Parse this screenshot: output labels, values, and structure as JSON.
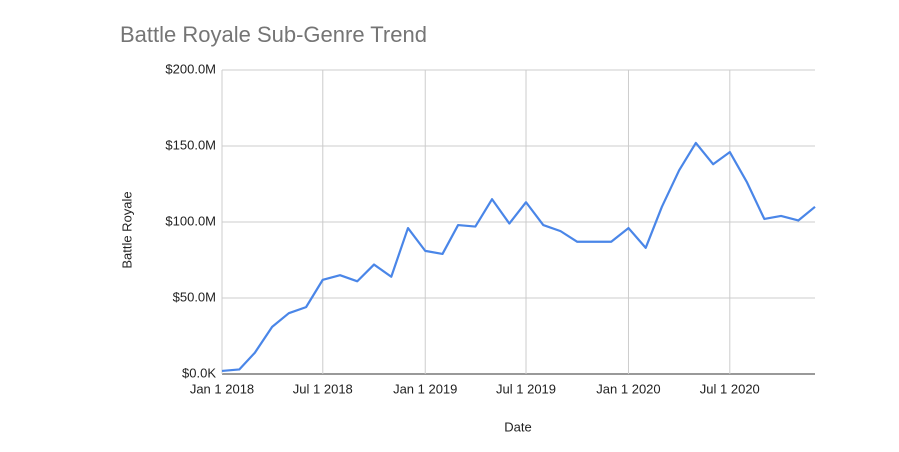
{
  "chart_data": {
    "type": "line",
    "title": "Battle Royale Sub-Genre Trend",
    "x_label": "Date",
    "y_label": "Battle Royale",
    "x": [
      "2018-01-01",
      "2018-02-01",
      "2018-03-01",
      "2018-04-01",
      "2018-05-01",
      "2018-06-01",
      "2018-07-01",
      "2018-08-01",
      "2018-09-01",
      "2018-10-01",
      "2018-11-01",
      "2018-12-01",
      "2019-01-01",
      "2019-02-01",
      "2019-03-01",
      "2019-04-01",
      "2019-05-01",
      "2019-06-01",
      "2019-07-01",
      "2019-08-01",
      "2019-09-01",
      "2019-10-01",
      "2019-11-01",
      "2019-12-01",
      "2020-01-01",
      "2020-02-01",
      "2020-03-01",
      "2020-04-01",
      "2020-05-01",
      "2020-06-01",
      "2020-07-01",
      "2020-08-01",
      "2020-09-01",
      "2020-10-01",
      "2020-11-01",
      "2020-12-01"
    ],
    "series": [
      {
        "name": "Battle Royale",
        "color": "#4a86e8",
        "values": [
          2000000,
          3000000,
          14000000,
          31000000,
          40000000,
          44000000,
          62000000,
          65000000,
          61000000,
          72000000,
          64000000,
          96000000,
          81000000,
          79000000,
          98000000,
          97000000,
          115000000,
          99000000,
          113000000,
          98000000,
          94000000,
          87000000,
          87000000,
          87000000,
          96000000,
          83000000,
          110000000,
          134000000,
          152000000,
          138000000,
          146000000,
          126000000,
          102000000,
          104000000,
          101000000,
          110000000
        ]
      }
    ],
    "xlim": [
      "2018-01-01",
      "2020-12-01"
    ],
    "xticks": [
      {
        "value": "2018-01-01",
        "label": "Jan 1 2018"
      },
      {
        "value": "2018-07-01",
        "label": "Jul 1 2018"
      },
      {
        "value": "2019-01-01",
        "label": "Jan 1 2019"
      },
      {
        "value": "2019-07-01",
        "label": "Jul 1 2019"
      },
      {
        "value": "2020-01-01",
        "label": "Jan 1 2020"
      },
      {
        "value": "2020-07-01",
        "label": "Jul 1 2020"
      }
    ],
    "ylim": [
      0,
      200000000
    ],
    "yticks": [
      {
        "value": 0,
        "label": "$0.0K"
      },
      {
        "value": 50000000,
        "label": "$50.0M"
      },
      {
        "value": 100000000,
        "label": "$100.0M"
      },
      {
        "value": 150000000,
        "label": "$150.0M"
      },
      {
        "value": 200000000,
        "label": "$200.0M"
      }
    ],
    "grid": true
  }
}
